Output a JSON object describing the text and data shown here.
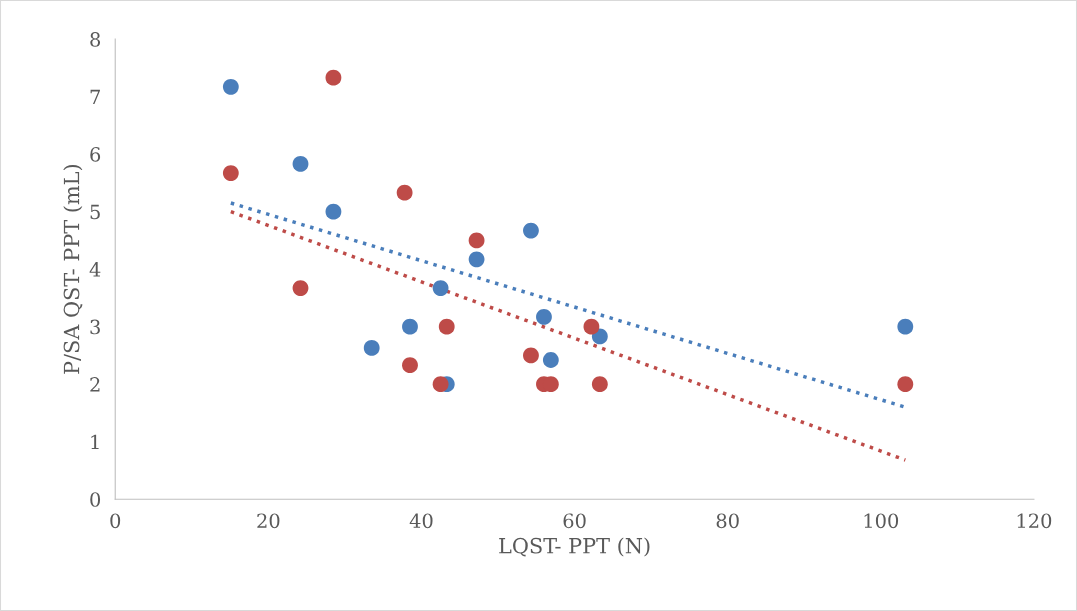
{
  "chart_data": {
    "type": "scatter",
    "xlabel": "LQST- PPT (N)",
    "ylabel": "P/SA QST- PPT (mL)",
    "xlim": [
      0,
      120
    ],
    "xticks": [
      0,
      20,
      40,
      60,
      80,
      100,
      120
    ],
    "ylim": [
      0,
      8
    ],
    "yticks": [
      0,
      1,
      2,
      3,
      4,
      5,
      6,
      7,
      8
    ],
    "grid": false,
    "series": [
      {
        "marker": "circle",
        "color": "#4a7ebb",
        "x": [
          15.1,
          24.2,
          28.5,
          33.5,
          38.5,
          42.5,
          43.3,
          47.2,
          54.3,
          56.0,
          56.9,
          63.3,
          103.2
        ],
        "values": [
          7.17,
          5.83,
          5.0,
          2.63,
          3.0,
          3.67,
          2.0,
          4.17,
          4.67,
          3.17,
          2.42,
          2.83,
          3.0
        ]
      },
      {
        "marker": "circle",
        "color": "#be4b48",
        "x": [
          15.1,
          24.2,
          28.5,
          37.8,
          38.5,
          42.5,
          43.3,
          47.2,
          54.3,
          56.0,
          56.9,
          62.2,
          63.3,
          103.2
        ],
        "values": [
          5.67,
          3.67,
          7.33,
          5.33,
          2.33,
          2.0,
          3.0,
          4.5,
          2.5,
          2.0,
          2.0,
          3.0,
          2.0,
          2.0
        ]
      },
      {
        "type": "line",
        "marker": "none",
        "line_style": "dotted",
        "color": "#4a7ebb",
        "x": [
          15.1,
          103.2
        ],
        "values": [
          5.15,
          1.6
        ]
      },
      {
        "type": "line",
        "marker": "none",
        "line_style": "dotted",
        "color": "#be4b48",
        "x": [
          15.1,
          103.2
        ],
        "values": [
          5.0,
          0.68
        ]
      }
    ]
  }
}
